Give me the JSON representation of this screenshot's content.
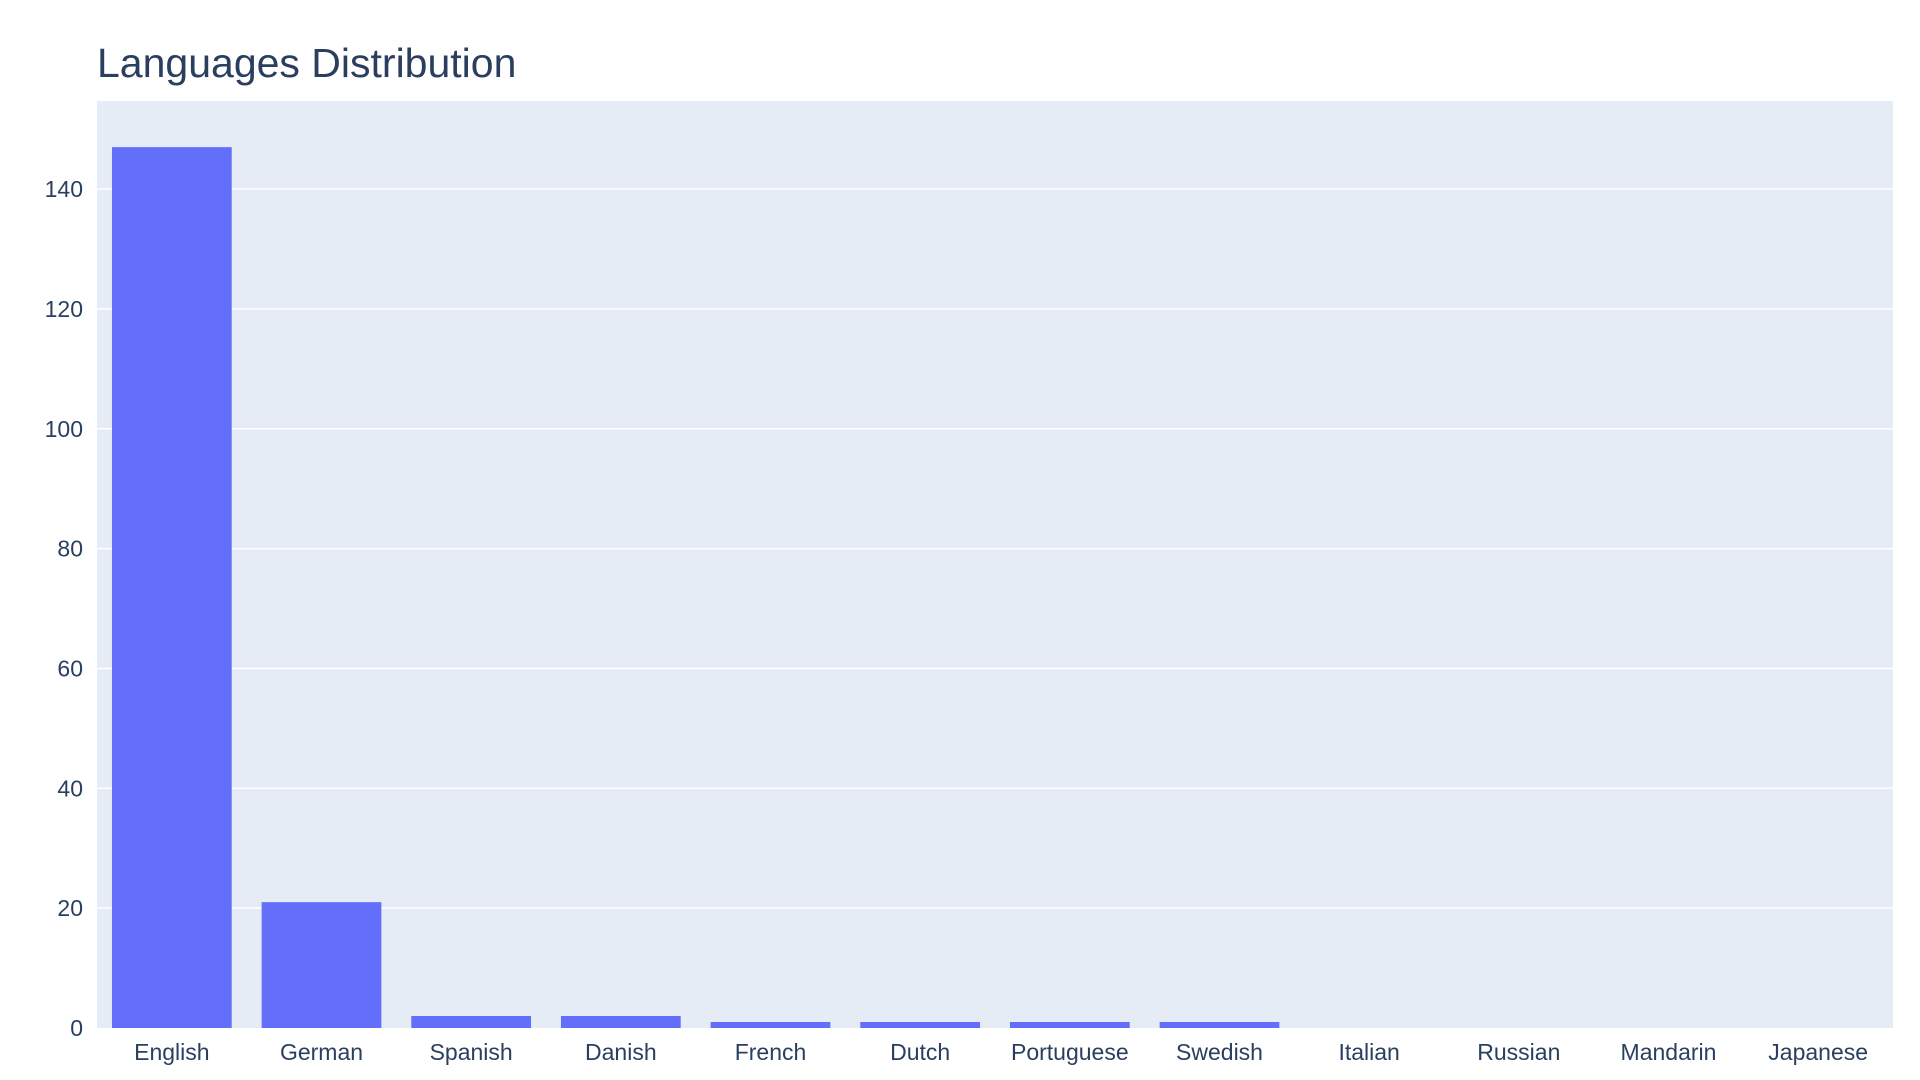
{
  "chart_data": {
    "type": "bar",
    "title": "Languages Distribution",
    "xlabel": "",
    "ylabel": "",
    "categories": [
      "English",
      "German",
      "Spanish",
      "Danish",
      "French",
      "Dutch",
      "Portuguese",
      "Swedish",
      "Italian",
      "Russian",
      "Mandarin",
      "Japanese"
    ],
    "values": [
      147,
      21,
      2,
      2,
      1,
      1,
      1,
      1,
      0,
      0,
      0,
      0
    ],
    "ylim": [
      0,
      154.7
    ],
    "yticks": [
      0,
      20,
      40,
      60,
      80,
      100,
      120,
      140
    ],
    "grid": true,
    "legend": "none",
    "colors": {
      "bar": "#636efa",
      "plot_background": "#e5ecf6",
      "grid": "#ffffff",
      "text": "#2a3f5f"
    }
  }
}
